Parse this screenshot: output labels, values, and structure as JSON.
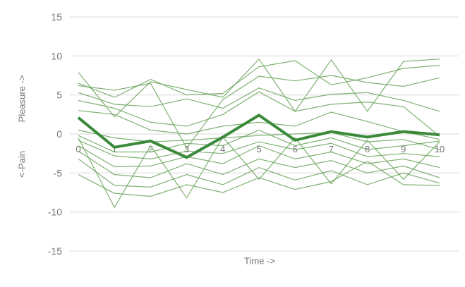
{
  "chart_data": {
    "type": "line",
    "title": "",
    "xlabel": "Time ->",
    "ylabel_top": "Pleasure ->",
    "ylabel_bottom": "<-Pain",
    "x": [
      0,
      1,
      2,
      3,
      4,
      5,
      6,
      7,
      8,
      9,
      10
    ],
    "yticks": [
      15,
      10,
      5,
      0,
      -5,
      -10,
      -15
    ],
    "ylim": [
      -15,
      15
    ],
    "xlim": [
      0,
      10
    ],
    "grid": true,
    "legend": false,
    "mean_series": {
      "role": "thick-mean-line",
      "values": [
        2.1,
        -1.7,
        -0.9,
        -3.0,
        -0.4,
        2.4,
        -0.8,
        0.3,
        -0.4,
        0.3,
        -0.1
      ]
    },
    "individual_series": [
      [
        7.9,
        2.2,
        6.7,
        5.7,
        4.7,
        9.6,
        2.9,
        9.5,
        2.9,
        9.3,
        9.6
      ],
      [
        6.5,
        4.7,
        7.0,
        5.0,
        5.2,
        8.6,
        9.4,
        6.3,
        7.2,
        8.4,
        8.8
      ],
      [
        6.2,
        5.6,
        6.5,
        -1.8,
        4.4,
        7.4,
        6.8,
        7.5,
        6.6,
        6.1,
        7.2
      ],
      [
        5.3,
        3.8,
        3.5,
        4.5,
        3.3,
        5.9,
        4.3,
        5.1,
        5.3,
        4.3,
        2.9
      ],
      [
        4.3,
        3.3,
        1.5,
        1.0,
        2.5,
        5.4,
        2.9,
        3.8,
        4.1,
        3.5,
        -0.3
      ],
      [
        3.0,
        2.5,
        0.5,
        0.0,
        1.0,
        1.5,
        1.0,
        2.8,
        1.6,
        0.3,
        -0.7
      ],
      [
        0.5,
        -0.5,
        -1.0,
        -0.8,
        -0.5,
        -0.2,
        0.0,
        0.2,
        -1.0,
        -0.7,
        -2.0
      ],
      [
        -0.2,
        -2.3,
        -2.3,
        -1.2,
        -1.5,
        0.5,
        -1.5,
        -0.5,
        -2.0,
        -1.5,
        -0.9
      ],
      [
        -0.8,
        -2.8,
        -3.2,
        -2.2,
        -2.5,
        -1.0,
        -2.0,
        -1.2,
        -2.9,
        -2.5,
        -2.9
      ],
      [
        -1.5,
        -4.2,
        -4.1,
        -2.9,
        -3.8,
        -1.5,
        -3.2,
        -2.3,
        -3.8,
        -3.2,
        -4.3
      ],
      [
        -2.2,
        -5.2,
        -5.6,
        -3.8,
        -5.2,
        -3.2,
        -4.3,
        -3.4,
        -5.0,
        -4.1,
        -5.6
      ],
      [
        -3.2,
        -6.6,
        -6.8,
        -5.2,
        -6.5,
        -4.3,
        -5.9,
        -4.7,
        -6.5,
        -5.0,
        -6.3
      ],
      [
        -5.2,
        -7.6,
        -8.0,
        -6.5,
        -7.5,
        -5.6,
        -7.1,
        -6.1,
        -3.5,
        -6.5,
        -6.6
      ],
      [
        -0.5,
        -9.4,
        -1.5,
        -8.2,
        -0.4,
        -5.8,
        -0.5,
        -6.4,
        -0.8,
        -5.8,
        -1.0
      ]
    ],
    "colors": {
      "individual_line": "#69a35b",
      "mean_line": "#3a8a3a",
      "gridline": "#d9d9d9",
      "tick_label": "#757575",
      "axis_title": "#757575",
      "background": "#ffffff"
    }
  }
}
